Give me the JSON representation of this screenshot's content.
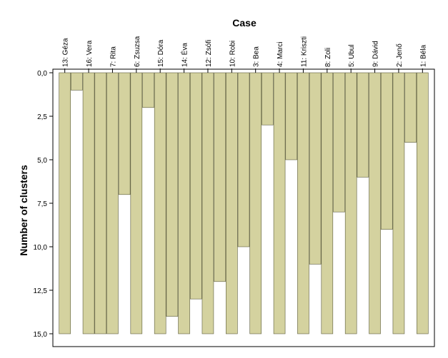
{
  "chart_data": {
    "type": "bar",
    "orientation": "vertical-icicle",
    "xlabel": "Case",
    "ylabel": "Number of clusters",
    "ylim": [
      0,
      15
    ],
    "yticks": [
      "0,0",
      "2,5",
      "5,0",
      "7,5",
      "10,0",
      "12,5",
      "15,0"
    ],
    "categories": [
      "13: Géza",
      "16: Vera",
      "7: Rita",
      "6: Zsuzsa",
      "15: Dóra",
      "14: Éva",
      "12: Zsófi",
      "10: Robi",
      "3: Bea",
      "4: Marci",
      "11: Kriszti",
      "8: Zoli",
      "5: Ubul",
      "9: Dávid",
      "2: Jenő",
      "1: Béla"
    ],
    "joins": [
      1,
      15,
      7,
      2,
      14,
      13,
      12,
      10,
      3,
      5,
      11,
      8,
      6,
      9,
      4
    ],
    "grid": false,
    "colors": {
      "bar": "#d4d29f",
      "gap": "#f0f0f0",
      "bar_border": "#5a5a3a",
      "axis": "#000000"
    }
  }
}
